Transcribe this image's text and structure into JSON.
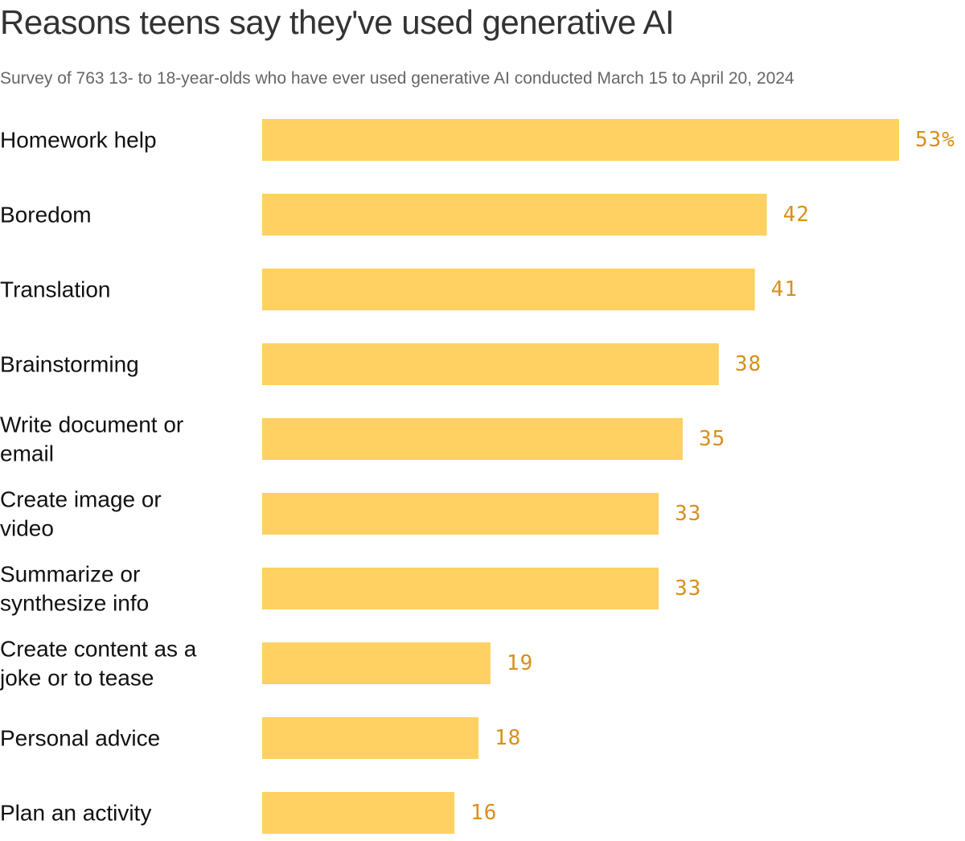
{
  "chart_data": {
    "type": "bar",
    "orientation": "horizontal",
    "title": "Reasons teens say they've used generative AI",
    "subtitle": "Survey of 763 13- to 18-year-olds who have ever used generative AI conducted March 15 to April 20, 2024",
    "categories": [
      [
        "Homework help"
      ],
      [
        "Boredom"
      ],
      [
        "Translation"
      ],
      [
        "Brainstorming"
      ],
      [
        "Write document or",
        "email"
      ],
      [
        "Create image or",
        "video"
      ],
      [
        "Summarize or",
        "synthesize info"
      ],
      [
        "Create content as a",
        "joke or to tease"
      ],
      [
        "Personal advice"
      ],
      [
        "Plan an activity"
      ]
    ],
    "values": [
      53,
      42,
      41,
      38,
      35,
      33,
      33,
      19,
      18,
      16
    ],
    "value_labels": [
      "53%",
      "42",
      "41",
      "38",
      "35",
      "33",
      "33",
      "19",
      "18",
      "16"
    ],
    "xlim": [
      0,
      53
    ],
    "grid": false,
    "xlabel": "",
    "ylabel": "",
    "colors": {
      "bar": "#fed162",
      "value_label": "#d88f1c",
      "category_label": "#111111"
    }
  }
}
